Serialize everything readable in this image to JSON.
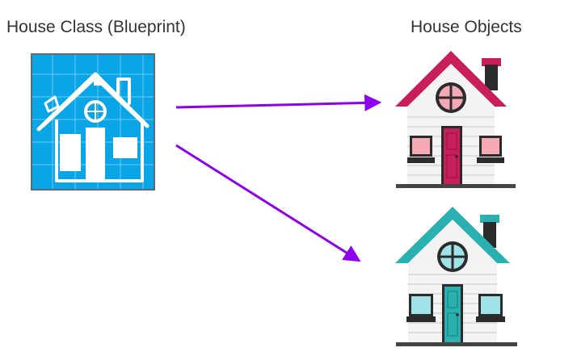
{
  "labels": {
    "class_title": "House Class (Blueprint)",
    "objects_title": "House Objects"
  },
  "colors": {
    "blueprint_bg": "#0aa5e6",
    "blueprint_grid": "#6ec9f1",
    "blueprint_frame": "#5a6b75",
    "arrow": "#8f00f0",
    "house1_accent": "#c81e5a",
    "house1_light": "#f4a9b4",
    "house2_accent": "#2ab0b0",
    "house2_light": "#9fe3e8",
    "wall": "#f3f3f3",
    "wall_line": "#d6d6d6",
    "dark": "#2b2b2b"
  },
  "diagram": {
    "source": "blueprint",
    "targets": [
      "house-object-pink",
      "house-object-teal"
    ],
    "connector": "arrow"
  }
}
